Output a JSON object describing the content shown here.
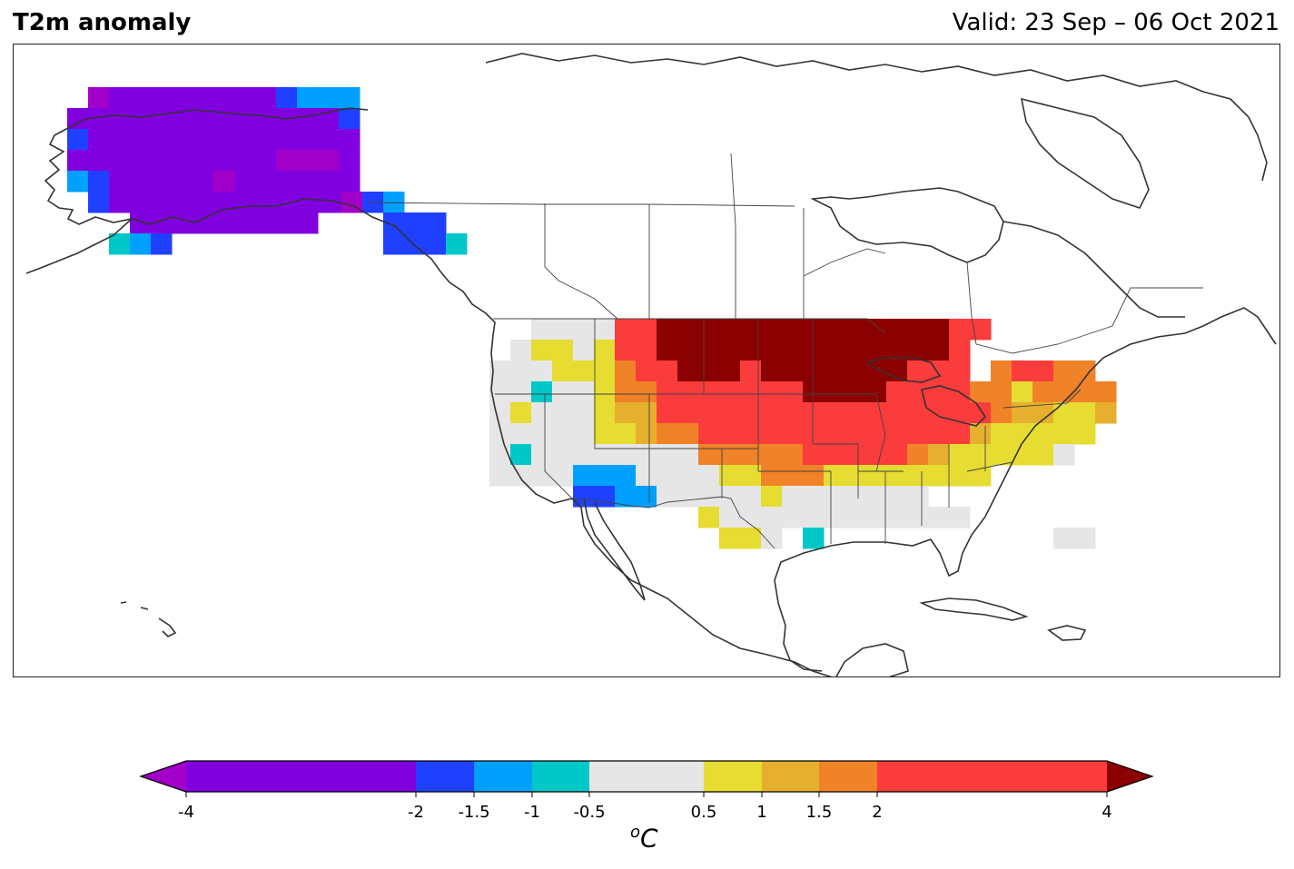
{
  "title": "T2m anomaly",
  "valid": "Valid: 23 Sep – 06 Oct 2021",
  "colorbar": {
    "unit_base": "C",
    "unit_sup": "o",
    "ticks": [
      "-4",
      "-2",
      "-1.5",
      "-1",
      "-0.5",
      "0.5",
      "1",
      "1.5",
      "2",
      "4"
    ],
    "bins": [
      {
        "from": -4,
        "to": -2,
        "color": "#8000e0"
      },
      {
        "from": -2,
        "to": -1.5,
        "color": "#2040ff"
      },
      {
        "from": -1.5,
        "to": -1,
        "color": "#00a0ff"
      },
      {
        "from": -1,
        "to": -0.5,
        "color": "#00c8c8"
      },
      {
        "from": -0.5,
        "to": 0.5,
        "color": "#e6e6e6"
      },
      {
        "from": 0.5,
        "to": 1,
        "color": "#e6dc32"
      },
      {
        "from": 1,
        "to": 1.5,
        "color": "#e6af2d"
      },
      {
        "from": 1.5,
        "to": 2,
        "color": "#f08228"
      },
      {
        "from": 2,
        "to": 4,
        "color": "#fa3c3c"
      }
    ],
    "under_color": "#a000c8",
    "over_color": "#8b0000"
  }
}
